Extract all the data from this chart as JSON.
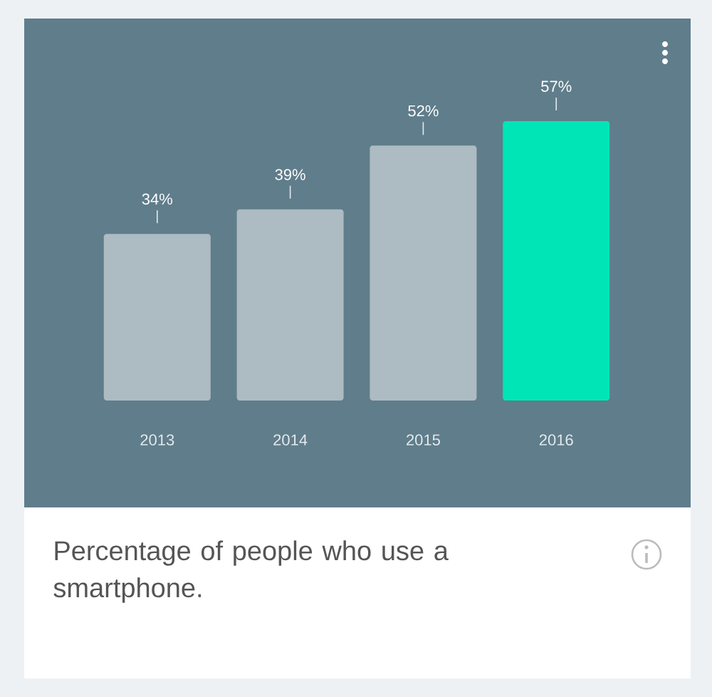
{
  "chart_data": {
    "type": "bar",
    "title": "Percentage of people who use a smartphone.",
    "categories": [
      "2013",
      "2014",
      "2015",
      "2016"
    ],
    "values": [
      34,
      39,
      52,
      57
    ],
    "colors": [
      "#adbbc2",
      "#adbbc2",
      "#adbbc2",
      "#00e5b5"
    ],
    "value_labels": [
      "34%",
      "39%",
      "52%",
      "57%"
    ]
  }
}
